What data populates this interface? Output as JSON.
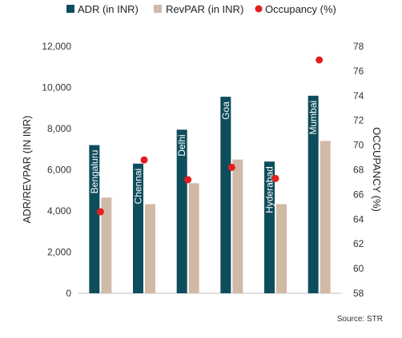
{
  "chart_data": {
    "type": "bar",
    "categories": [
      "Bengaluru",
      "Chennai",
      "Delhi",
      "Goa",
      "Hyderabad",
      "Mumbai"
    ],
    "series": [
      {
        "name": "ADR (in INR)",
        "axis": "left",
        "kind": "bar",
        "values": [
          7200,
          6300,
          7950,
          9550,
          6400,
          9600
        ]
      },
      {
        "name": "RevPAR (in INR)",
        "axis": "left",
        "kind": "bar",
        "values": [
          4650,
          4330,
          5350,
          6500,
          4330,
          7400
        ]
      },
      {
        "name": "Occupancy (%)",
        "axis": "right",
        "kind": "scatter",
        "values": [
          64.6,
          68.8,
          67.2,
          68.2,
          67.3,
          76.9
        ]
      }
    ],
    "ylabel": "ADR/REVPAR (IN INR)",
    "y2label": "OCCUPANCY (%)",
    "ylim": [
      0,
      12000
    ],
    "y2lim": [
      58,
      78
    ],
    "yticks": [
      "0",
      "2,000",
      "4,000",
      "6,000",
      "8,000",
      "10,000",
      "12,000"
    ],
    "y2ticks": [
      "58",
      "60",
      "62",
      "64",
      "66",
      "68",
      "70",
      "72",
      "74",
      "76",
      "78"
    ],
    "colors": {
      "adr": "#0e4d5c",
      "revpar": "#d1b9a8",
      "occupancy": "#e41e1e"
    },
    "legend_position": "top",
    "source": "Source: STR"
  }
}
